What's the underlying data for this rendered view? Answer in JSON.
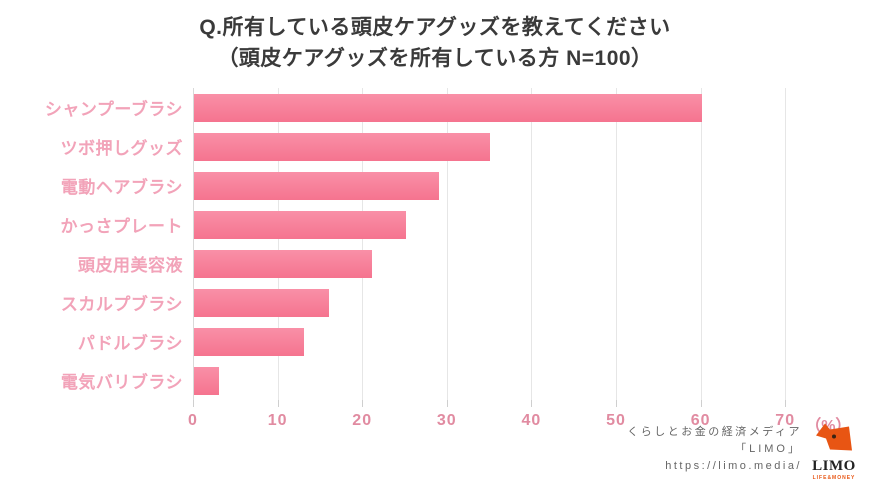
{
  "title": {
    "line1": "Q.所有している頭皮ケアグッズを教えてください",
    "line2": "（頭皮ケアグッズを所有している方 N=100）"
  },
  "chart_data": {
    "type": "bar",
    "orientation": "horizontal",
    "title": "Q.所有している頭皮ケアグッズを教えてください（頭皮ケアグッズを所有している方 N=100）",
    "categories": [
      "シャンプーブラシ",
      "ツボ押しグッズ",
      "電動ヘアブラシ",
      "かっさプレート",
      "頭皮用美容液",
      "スカルプブラシ",
      "パドルブラシ",
      "電気バリブラシ"
    ],
    "values": [
      60,
      35,
      29,
      25,
      21,
      16,
      13,
      3
    ],
    "x_ticks": [
      0,
      10,
      20,
      30,
      40,
      50,
      60,
      70
    ],
    "x_unit_label": "（%）",
    "xlim": [
      0,
      70
    ],
    "grid": true,
    "colors": {
      "bar": "#F77E97",
      "bar_gradient_top": "#F990A7",
      "bar_gradient_bottom": "#F5748F",
      "category_label": "#F2A3B9",
      "tick_label": "#E18BA1",
      "gridline": "#E6E6E6",
      "title_text": "#3a3a3a"
    }
  },
  "footer": {
    "line1": "くらしとお金の経済メディア",
    "line2": "「LIMO」",
    "line3": "https://limo.media/",
    "logo": {
      "icon": "llama-head-icon",
      "word": "LIMO",
      "tagline": "LIFE&MONEY",
      "brand_color": "#E85513",
      "text_color": "#222222"
    }
  }
}
